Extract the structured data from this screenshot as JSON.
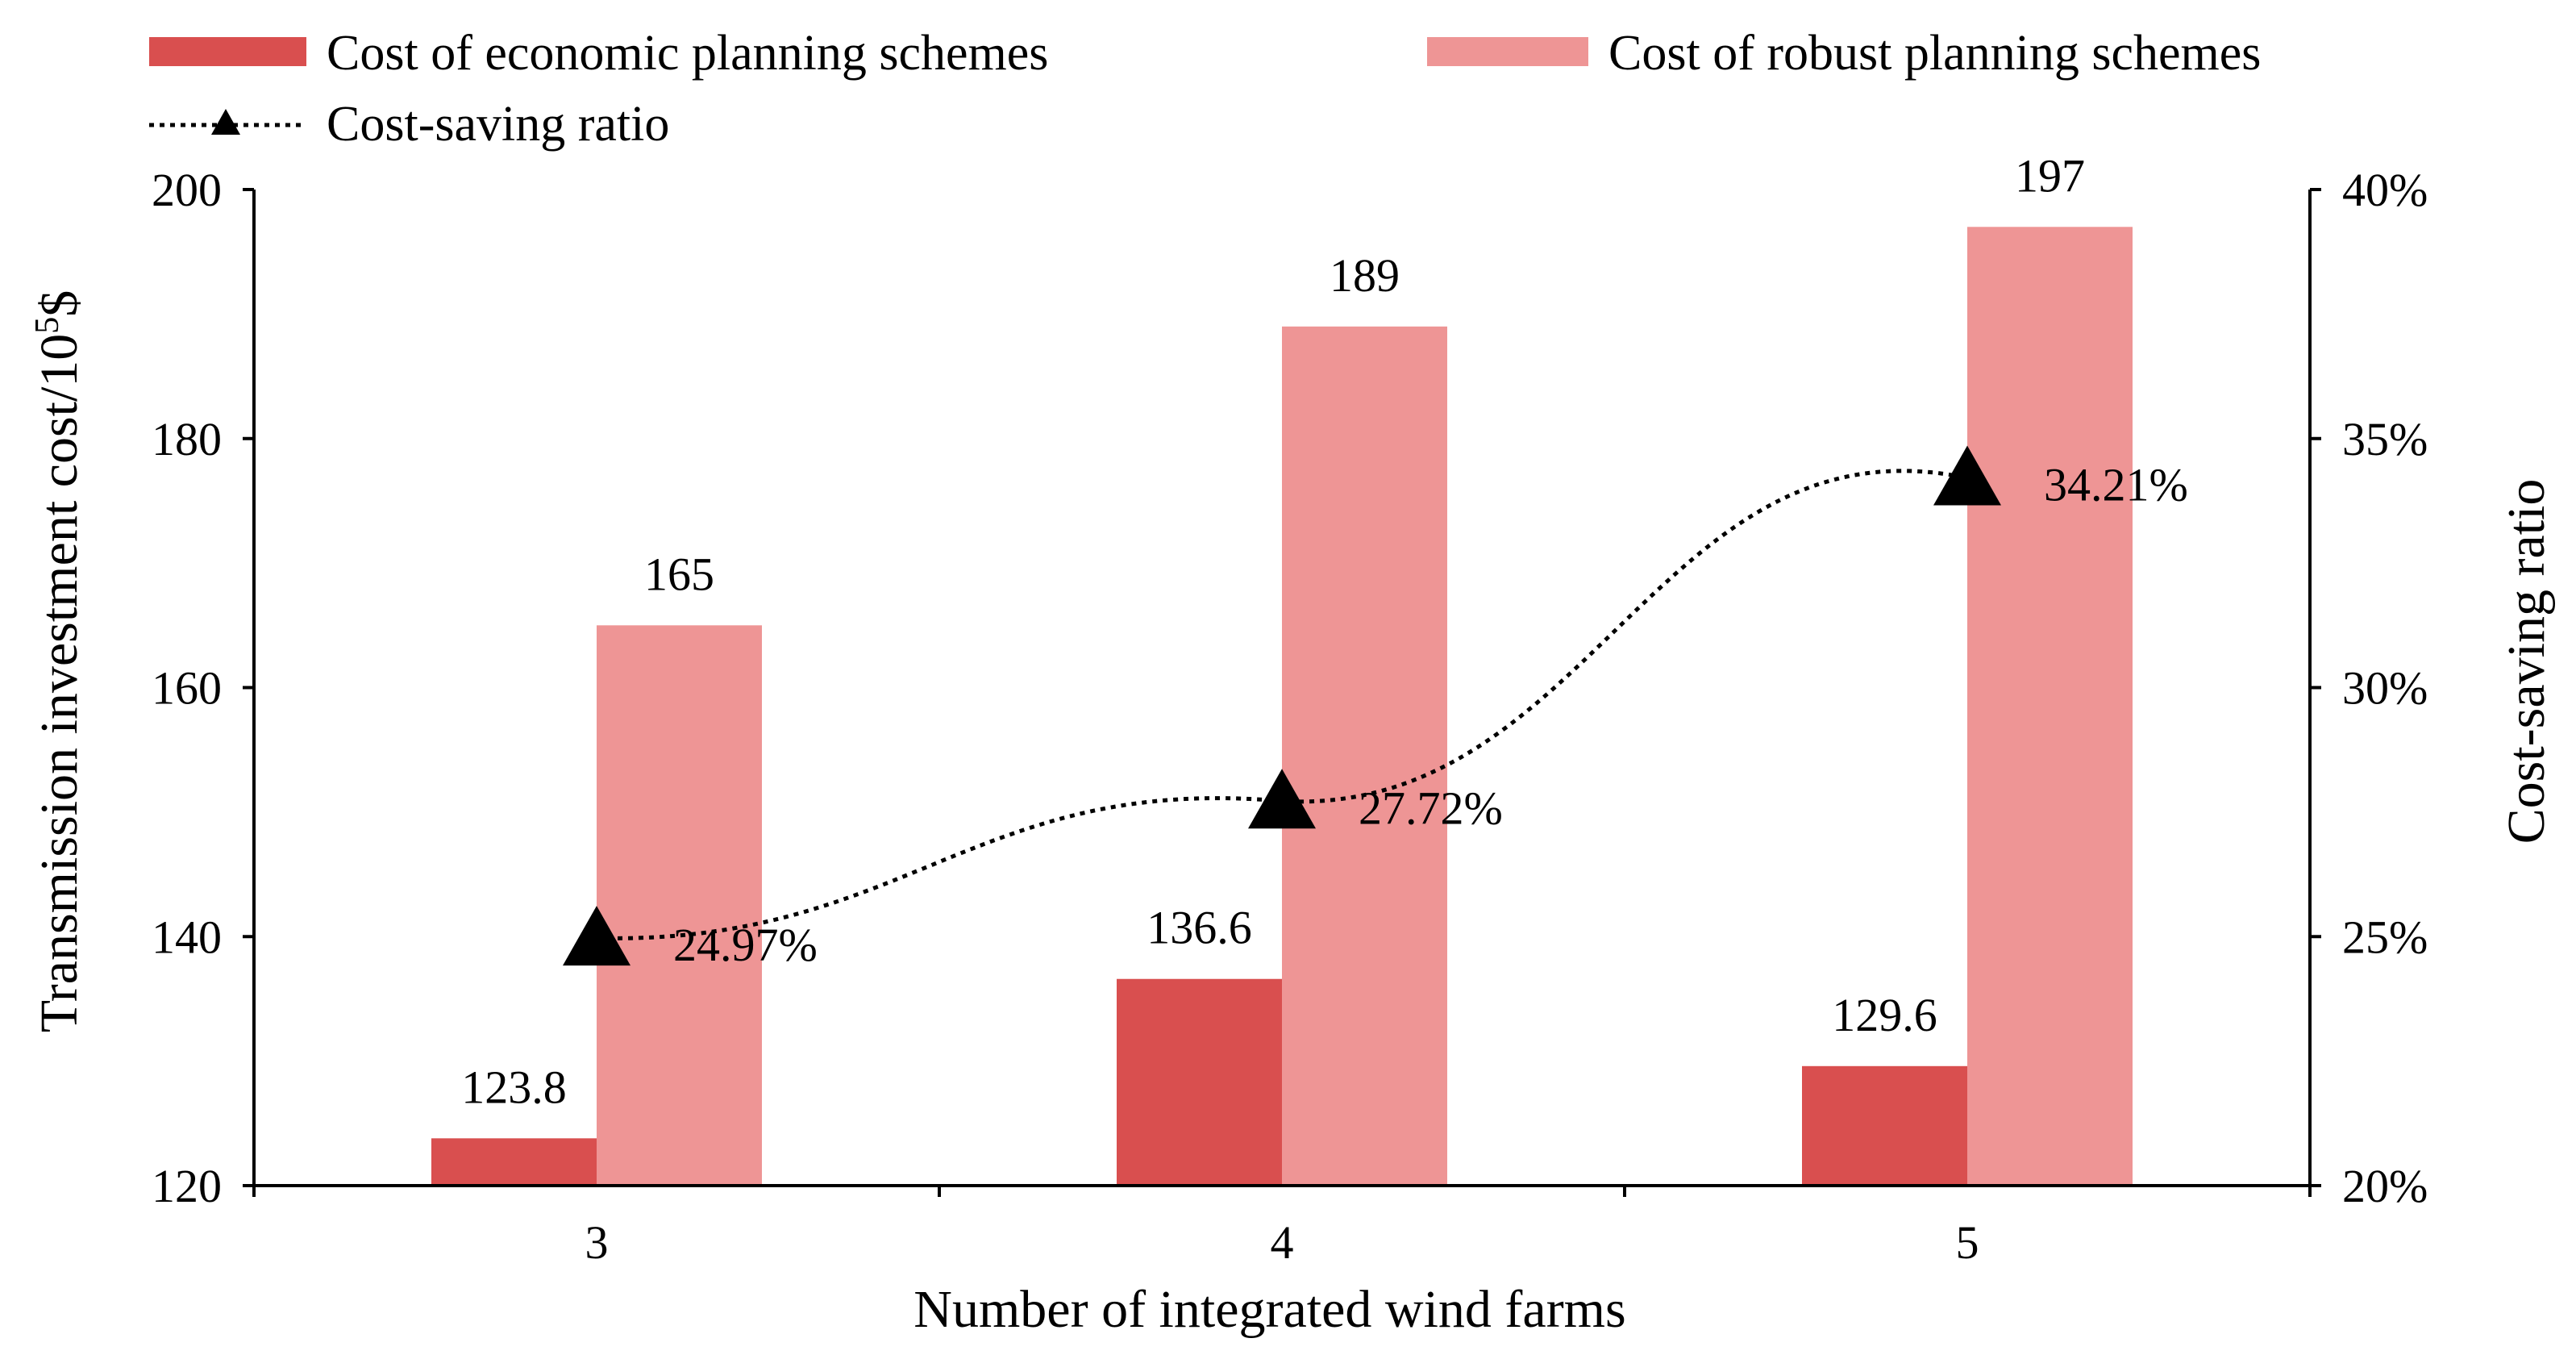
{
  "chart_data": {
    "type": "bar",
    "xlabel": "Number of integrated wind farms",
    "ylabel_left_prefix": "Transmission investment cost/10",
    "ylabel_left_exp": "5",
    "ylabel_left_suffix": "$",
    "ylabel_right": "Cost-saving ratio",
    "categories": [
      "3",
      "4",
      "5"
    ],
    "ylim": [
      120,
      200
    ],
    "y_ticks": [
      "120",
      "140",
      "160",
      "180",
      "200"
    ],
    "y2lim": [
      20,
      40
    ],
    "y2_ticks": [
      "20%",
      "25%",
      "30%",
      "35%",
      "40%"
    ],
    "grid": false,
    "legend_position": "top",
    "series": [
      {
        "name": "Cost of economic planning schemes",
        "kind": "bar",
        "axis": "left",
        "color": "#d94f4f",
        "values": [
          123.8,
          136.6,
          129.6
        ],
        "labels": [
          "123.8",
          "136.6",
          "129.6"
        ]
      },
      {
        "name": "Cost of robust planning schemes",
        "kind": "bar",
        "axis": "left",
        "color": "#ee9595",
        "values": [
          165,
          189,
          197
        ],
        "labels": [
          "165",
          "189",
          "197"
        ]
      },
      {
        "name": "Cost-saving ratio",
        "kind": "line",
        "axis": "right",
        "color": "#000000",
        "marker": "triangle",
        "line_style": "dotted",
        "values": [
          24.97,
          27.72,
          34.21
        ],
        "labels": [
          "24.97%",
          "27.72%",
          "34.21%"
        ]
      }
    ]
  }
}
